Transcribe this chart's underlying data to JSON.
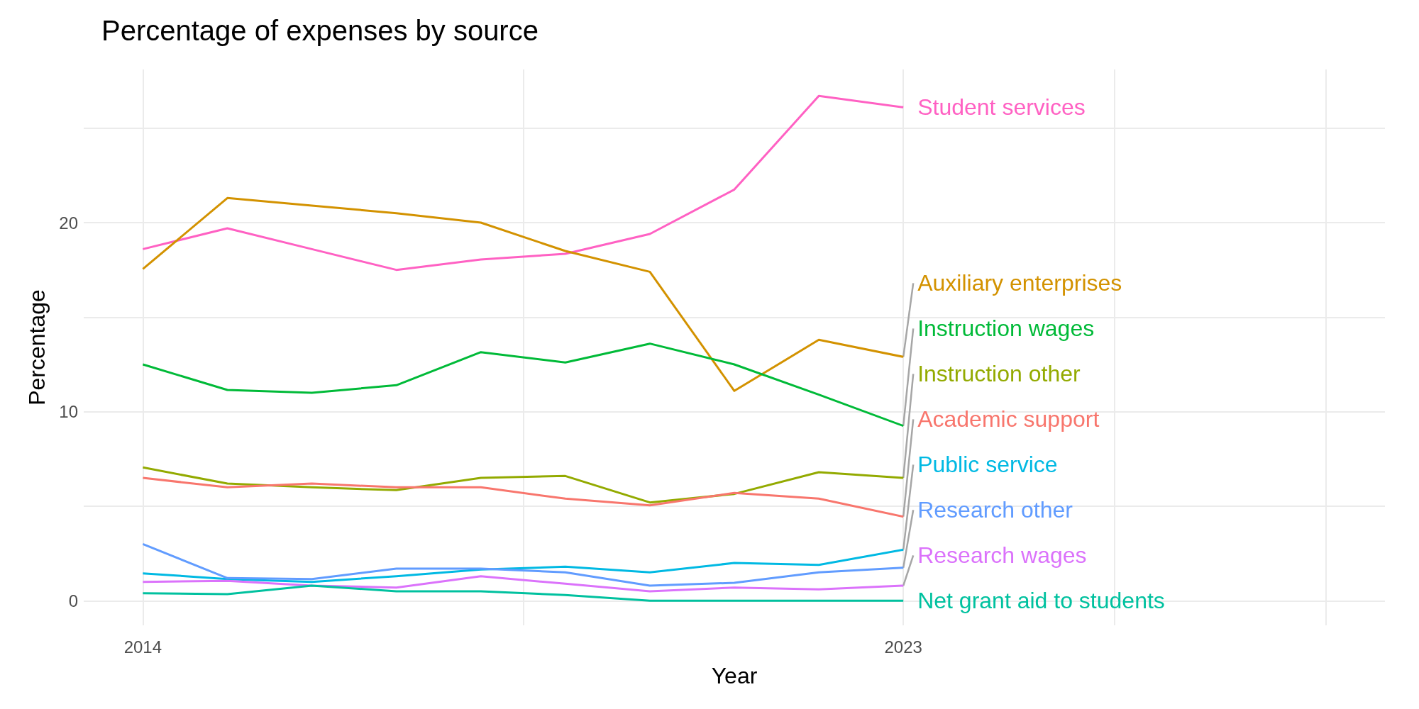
{
  "chart_data": {
    "type": "line",
    "title": "Percentage of expenses by source",
    "xlabel": "Year",
    "ylabel": "Percentage",
    "x": [
      2014,
      2015,
      2016,
      2017,
      2018,
      2019,
      2020,
      2021,
      2022,
      2023
    ],
    "xlim": [
      2013.3,
      2028.7
    ],
    "xticks": [
      2014,
      {
        "value": 2018.5,
        "label": null
      },
      2023,
      {
        "value": 2025.5,
        "label": null
      },
      {
        "value": 2028,
        "label": null
      }
    ],
    "ylim": [
      -1.3,
      28.1
    ],
    "yticks": [
      0,
      {
        "value": 5,
        "label": null
      },
      10,
      {
        "value": 15,
        "label": null
      },
      20,
      {
        "value": 25,
        "label": null
      }
    ],
    "grid": true,
    "legend": false,
    "series": [
      {
        "name": "Student services",
        "color": "#ff61c3",
        "values": [
          18.6,
          19.7,
          18.6,
          17.5,
          18.05,
          18.35,
          19.4,
          21.75,
          26.7,
          26.1
        ]
      },
      {
        "name": "Auxiliary enterprises",
        "color": "#d39200",
        "values": [
          17.55,
          21.3,
          20.9,
          20.5,
          20.0,
          18.5,
          17.4,
          11.1,
          13.8,
          12.9
        ]
      },
      {
        "name": "Instruction wages",
        "color": "#00ba38",
        "values": [
          12.5,
          11.15,
          11.0,
          11.4,
          13.15,
          12.6,
          13.6,
          12.5,
          10.9,
          9.25
        ]
      },
      {
        "name": "Instruction other",
        "color": "#93aa00",
        "values": [
          7.05,
          6.2,
          6.0,
          5.85,
          6.5,
          6.6,
          5.2,
          5.65,
          6.8,
          6.5
        ]
      },
      {
        "name": "Academic support",
        "color": "#f8766d",
        "values": [
          6.5,
          6.0,
          6.2,
          6.0,
          6.0,
          5.4,
          5.05,
          5.7,
          5.4,
          4.45
        ]
      },
      {
        "name": "Public service",
        "color": "#00b9e3",
        "values": [
          1.45,
          1.15,
          1.0,
          1.3,
          1.65,
          1.8,
          1.5,
          2.0,
          1.9,
          2.7
        ]
      },
      {
        "name": "Research other",
        "color": "#619cff",
        "values": [
          3.0,
          1.2,
          1.15,
          1.7,
          1.7,
          1.5,
          0.8,
          0.95,
          1.5,
          1.75
        ]
      },
      {
        "name": "Research wages",
        "color": "#db72fb",
        "values": [
          1.0,
          1.05,
          0.8,
          0.7,
          1.3,
          0.9,
          0.5,
          0.7,
          0.6,
          0.8
        ]
      },
      {
        "name": "Net grant aid to students",
        "color": "#00c19f",
        "values": [
          0.4,
          0.35,
          0.8,
          0.5,
          0.5,
          0.3,
          0.0,
          0.0,
          0.0,
          0.0
        ]
      }
    ]
  }
}
